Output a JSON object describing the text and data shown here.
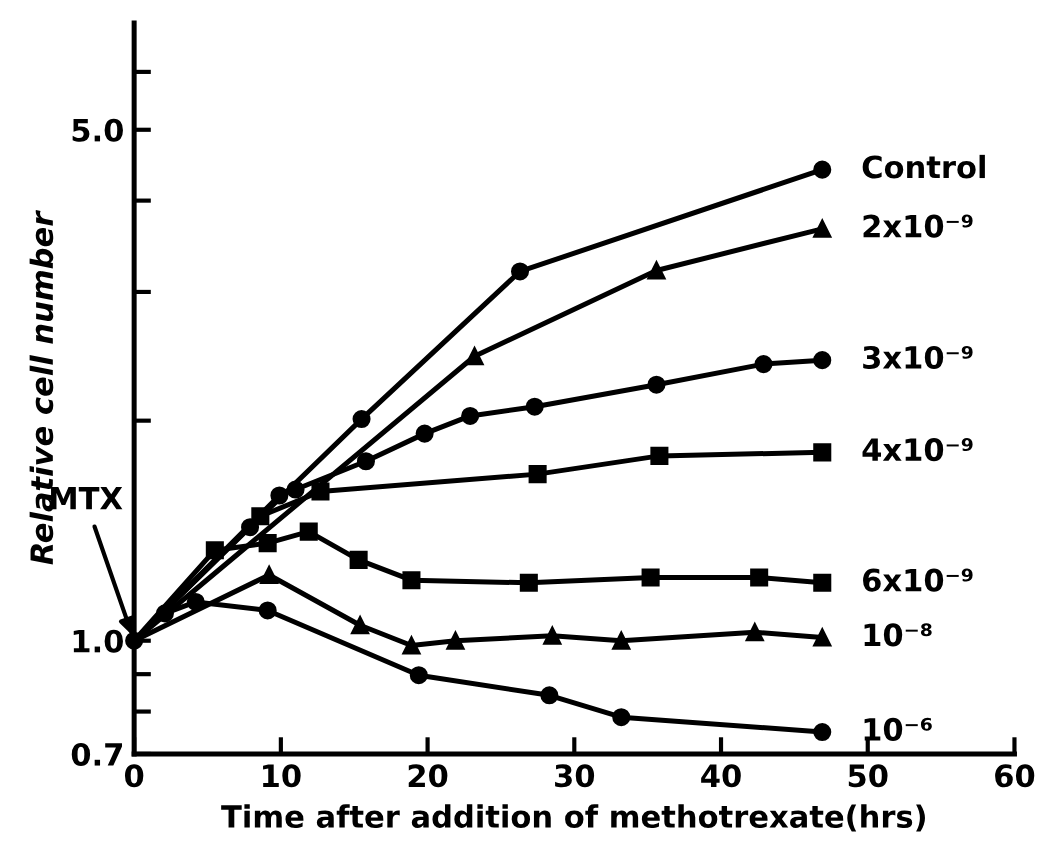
{
  "chart_data": {
    "type": "line",
    "xlabel": "Time after addition of methotrexate(hrs)",
    "ylabel": "Relative cell number",
    "xlim": [
      0,
      60
    ],
    "xticks": [
      0,
      10,
      20,
      30,
      40,
      50,
      60
    ],
    "ylim": [
      0.7,
      7
    ],
    "log": true,
    "yticks": [
      0.7,
      {
        "value": 0.8,
        "label": null
      },
      {
        "value": 0.9,
        "label": null
      },
      {
        "value": 1.0,
        "label": "1.0"
      },
      {
        "value": 2,
        "label": null
      },
      {
        "value": 3,
        "label": null
      },
      {
        "value": 4,
        "label": null
      },
      {
        "value": 5,
        "label": "5.0"
      },
      {
        "value": 6,
        "label": null
      }
    ],
    "grid": false,
    "legend": false,
    "line_style": "solid",
    "annotations": [
      {
        "text": "MTX",
        "x": 0,
        "y": 1.0
      }
    ],
    "series": [
      {
        "name": "Control",
        "color": "#000000",
        "marker": "circle",
        "x": [
          0,
          7.9,
          15.5,
          26.3,
          46.9
        ],
        "values": [
          1.0,
          1.43,
          2.01,
          3.2,
          4.41
        ]
      },
      {
        "name": "2x10⁻⁹",
        "color": "#000000",
        "marker": "triangle",
        "x": [
          0,
          23.2,
          35.6,
          46.9
        ],
        "values": [
          1.0,
          2.45,
          3.21,
          3.66
        ]
      },
      {
        "name": "3x10⁻⁹",
        "color": "#000000",
        "marker": "circle",
        "x": [
          0,
          9.9,
          11,
          15.8,
          19.8,
          22.9,
          27.3,
          35.6,
          42.9,
          46.9
        ],
        "values": [
          1.0,
          1.58,
          1.61,
          1.76,
          1.92,
          2.03,
          2.09,
          2.24,
          2.39,
          2.42
        ]
      },
      {
        "name": "4x10⁻⁹",
        "color": "#000000",
        "marker": "square",
        "x": [
          0,
          8.6,
          12.7,
          27.5,
          35.8,
          46.9
        ],
        "values": [
          1.0,
          1.48,
          1.6,
          1.69,
          1.79,
          1.81
        ]
      },
      {
        "name": "6x10⁻⁹",
        "color": "#000000",
        "marker": "square",
        "x": [
          0,
          5.5,
          9.1,
          11.9,
          15.3,
          18.9,
          26.9,
          35.2,
          42.6,
          46.9
        ],
        "values": [
          1.0,
          1.33,
          1.36,
          1.41,
          1.29,
          1.21,
          1.2,
          1.22,
          1.22,
          1.2
        ]
      },
      {
        "name": "10⁻⁸",
        "color": "#000000",
        "marker": "triangle",
        "x": [
          0,
          9.2,
          15.4,
          18.9,
          21.9,
          28.5,
          33.2,
          42.3,
          46.9
        ],
        "values": [
          1.0,
          1.23,
          1.05,
          0.985,
          1.0,
          1.016,
          1.0,
          1.027,
          1.01
        ]
      },
      {
        "name": "10⁻⁶",
        "color": "#000000",
        "marker": "circle",
        "x": [
          0,
          2.1,
          4.2,
          9.1,
          19.4,
          28.3,
          33.2,
          46.9
        ],
        "values": [
          1.0,
          1.09,
          1.13,
          1.1,
          0.897,
          0.842,
          0.786,
          0.75
        ]
      }
    ]
  }
}
